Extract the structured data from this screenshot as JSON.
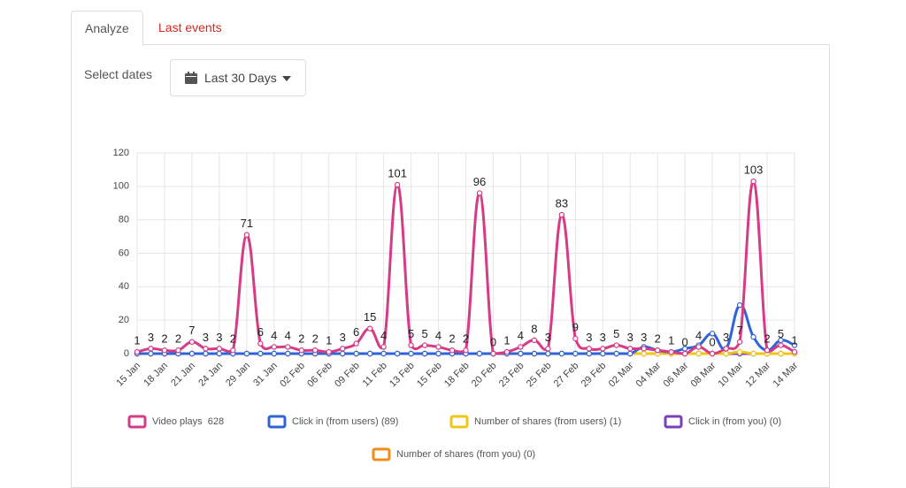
{
  "tabs": [
    "Analyze",
    "Last events"
  ],
  "select_dates_label": "Select dates",
  "date_button": "Last 30 Days",
  "chart_data": {
    "type": "line",
    "categories": [
      "15 Jan",
      null,
      "18 Jan",
      null,
      "21 Jan",
      null,
      "24 Jan",
      null,
      "29 Jan",
      null,
      "31 Jan",
      null,
      "02 Feb",
      null,
      "06 Feb",
      null,
      "09 Feb",
      null,
      "11 Feb",
      null,
      "13 Feb",
      null,
      "15 Feb",
      null,
      "18 Feb",
      null,
      "20 Feb",
      null,
      "23 Feb",
      null,
      "25 Feb",
      null,
      "27 Feb",
      null,
      "29 Feb",
      null,
      "02 Mar",
      null,
      "04 Mar",
      null,
      "06 Mar",
      null,
      "08 Mar",
      null,
      "10 Mar",
      null,
      "12 Mar",
      null,
      "14 Mar"
    ],
    "series": [
      {
        "name": "Video plays  628",
        "color": "#d63b86",
        "show_labels": true,
        "values": [
          1,
          3,
          2,
          2,
          7,
          3,
          3,
          2,
          71,
          6,
          4,
          4,
          2,
          2,
          1,
          3,
          6,
          15,
          4,
          101,
          5,
          5,
          4,
          2,
          2,
          96,
          0,
          1,
          4,
          8,
          3,
          83,
          9,
          3,
          3,
          5,
          3,
          3,
          2,
          1,
          0,
          4,
          0,
          3,
          7,
          103,
          2,
          5,
          1
        ]
      },
      {
        "name": "Click in (from users) (89)",
        "color": "#2f64d6",
        "values": [
          0,
          0,
          0,
          0,
          0,
          0,
          0,
          0,
          0,
          0,
          0,
          0,
          0,
          0,
          0,
          0,
          0,
          0,
          0,
          0,
          0,
          0,
          0,
          0,
          0,
          0,
          0,
          0,
          0,
          0,
          0,
          0,
          0,
          0,
          0,
          0,
          0,
          4,
          2,
          1,
          3,
          5,
          12,
          3,
          29,
          10,
          2,
          8,
          5
        ]
      },
      {
        "name": "Number of shares (from users) (1)",
        "color": "#f0c419",
        "values": [
          0,
          0,
          0,
          0,
          0,
          0,
          0,
          0,
          0,
          0,
          0,
          0,
          0,
          0,
          0,
          0,
          0,
          0,
          0,
          0,
          0,
          0,
          0,
          0,
          0,
          0,
          0,
          0,
          0,
          0,
          0,
          0,
          0,
          0,
          0,
          0,
          0,
          0,
          0,
          0,
          0,
          0,
          0,
          0,
          1,
          0,
          0,
          0,
          0
        ]
      },
      {
        "name": "Click in (from you) (0)",
        "color": "#7b3fb8",
        "values": [
          0,
          0,
          0,
          0,
          0,
          0,
          0,
          0,
          0,
          0,
          0,
          0,
          0,
          0,
          0,
          0,
          0,
          0,
          0,
          0,
          0,
          0,
          0,
          0,
          0,
          0,
          0,
          0,
          0,
          0,
          0,
          0,
          0,
          0,
          0,
          0,
          0,
          0,
          0,
          0,
          0,
          0,
          0,
          0,
          0,
          0,
          0,
          0,
          0
        ]
      },
      {
        "name": "Number of shares (from you) (0)",
        "color": "#f08c1a",
        "values": [
          0,
          0,
          0,
          0,
          0,
          0,
          0,
          0,
          0,
          0,
          0,
          0,
          0,
          0,
          0,
          0,
          0,
          0,
          0,
          0,
          0,
          0,
          0,
          0,
          0,
          0,
          0,
          0,
          0,
          0,
          0,
          0,
          0,
          0,
          0,
          0,
          0,
          0,
          0,
          0,
          0,
          0,
          0,
          0,
          0,
          0,
          0,
          0,
          0
        ]
      }
    ],
    "ylim": [
      0,
      120
    ],
    "yticks": [
      0,
      20,
      40,
      60,
      80,
      100,
      120
    ],
    "grid": true
  }
}
